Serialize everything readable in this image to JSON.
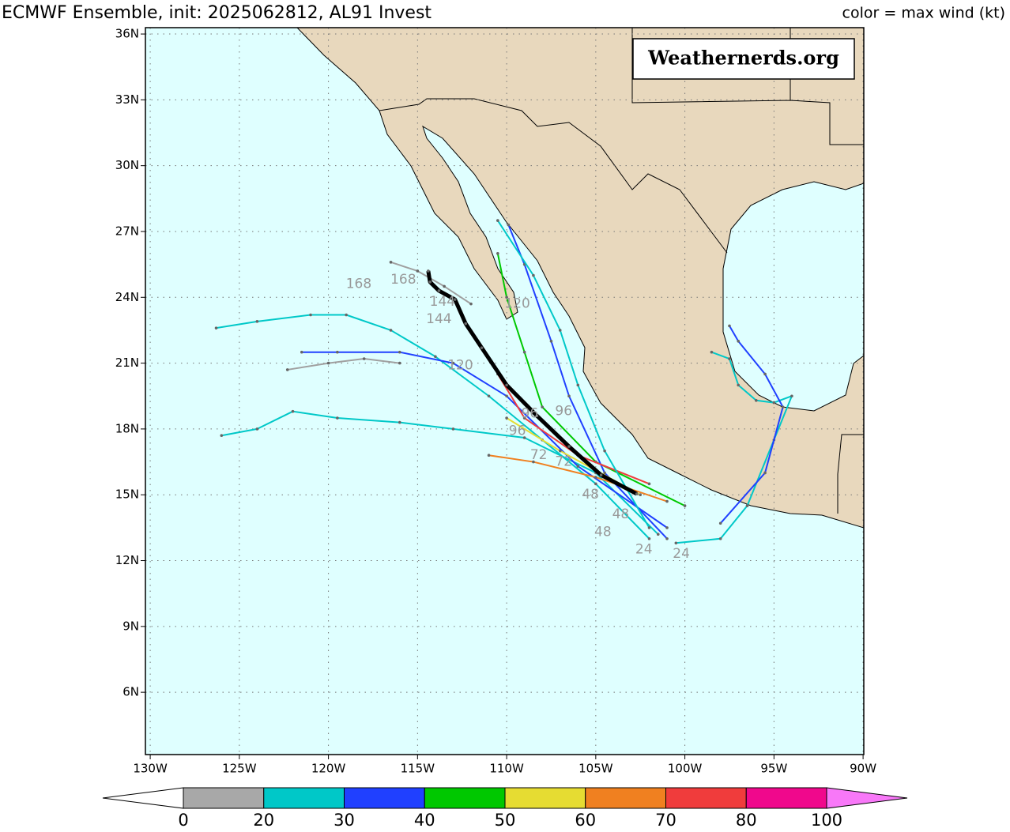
{
  "chart_data": {
    "type": "track-map",
    "title": "ECMWF Ensemble, init: 2025062812, AL91 Invest",
    "subtitle": "color = max wind (kt)",
    "watermark": "Weathernerds.org",
    "xlim": [
      -130.27,
      -89.96
    ],
    "ylim": [
      3.16,
      36.29
    ],
    "xticks": [
      {
        "value": -130,
        "label": "130W"
      },
      {
        "value": -125,
        "label": "125W"
      },
      {
        "value": -120,
        "label": "120W"
      },
      {
        "value": -115,
        "label": "115W"
      },
      {
        "value": -110,
        "label": "110W"
      },
      {
        "value": -105,
        "label": "105W"
      },
      {
        "value": -100,
        "label": "100W"
      },
      {
        "value": -95,
        "label": "95W"
      },
      {
        "value": -90,
        "label": "90W"
      }
    ],
    "yticks": [
      {
        "value": 6,
        "label": "6N"
      },
      {
        "value": 9,
        "label": "9N"
      },
      {
        "value": 12,
        "label": "12N"
      },
      {
        "value": 15,
        "label": "15N"
      },
      {
        "value": 18,
        "label": "18N"
      },
      {
        "value": 21,
        "label": "21N"
      },
      {
        "value": 24,
        "label": "24N"
      },
      {
        "value": 27,
        "label": "27N"
      },
      {
        "value": 30,
        "label": "30N"
      },
      {
        "value": 33,
        "label": "33N"
      },
      {
        "value": 36,
        "label": "36N"
      }
    ],
    "grid": true,
    "mean_track": {
      "color": "#000000",
      "lon": [
        -102.7,
        -104.7,
        -106.5,
        -108.3,
        -110.0,
        -111.4,
        -112.3,
        -112.9,
        -113.8,
        -114.3,
        -114.4
      ],
      "lat": [
        15.04,
        15.9,
        17.2,
        18.6,
        20.0,
        21.7,
        22.8,
        23.9,
        24.3,
        24.7,
        25.2
      ]
    },
    "series": [
      {
        "color": "#00c8c8",
        "lon": [
          -102,
          -105,
          -108,
          -111,
          -114,
          -116.5,
          -119,
          -121,
          -124,
          -126.3
        ],
        "lat": [
          13.0,
          15.5,
          17.5,
          19.5,
          21.3,
          22.5,
          23.2,
          23.2,
          22.9,
          22.6
        ]
      },
      {
        "color": "#00c8c8",
        "lon": [
          -101.5,
          -105,
          -109,
          -113,
          -116,
          -119.5,
          -122,
          -124,
          -126
        ],
        "lat": [
          13.2,
          16,
          17.6,
          18.0,
          18.3,
          18.5,
          18.8,
          18.0,
          17.7
        ]
      },
      {
        "color": "#2040ff",
        "lon": [
          -101,
          -106,
          -110,
          -113,
          -116,
          -119.5,
          -121.5
        ],
        "lat": [
          13.5,
          16.3,
          19.5,
          21.0,
          21.5,
          21.5,
          21.5
        ]
      },
      {
        "color": "#a0a0a0",
        "lon": [
          -116,
          -118,
          -120,
          -122.3
        ],
        "lat": [
          21,
          21.2,
          21.0,
          20.7
        ]
      },
      {
        "color": "#00c800",
        "lon": [
          -100,
          -105,
          -108,
          -109,
          -110,
          -110.5
        ],
        "lat": [
          14.5,
          16.5,
          19.0,
          21.5,
          24,
          26
        ]
      },
      {
        "color": "#2040ff",
        "lon": [
          -101,
          -104.5,
          -106.5,
          -107.5,
          -109,
          -109.9
        ],
        "lat": [
          13,
          16,
          19.5,
          22.0,
          25.5,
          27.3
        ]
      },
      {
        "color": "#f08020",
        "lon": [
          -101,
          -105,
          -108.5,
          -111
        ],
        "lat": [
          14.7,
          15.8,
          16.5,
          16.8
        ]
      },
      {
        "color": "#f03c3c",
        "lon": [
          -102,
          -106,
          -109,
          -110.5
        ],
        "lat": [
          15.5,
          16.8,
          18.5,
          20.5
        ]
      },
      {
        "color": "#e6dc32",
        "lon": [
          -102.5,
          -107,
          -110
        ],
        "lat": [
          15,
          17,
          18.5
        ]
      },
      {
        "color": "#00c8c8",
        "lon": [
          -100.5,
          -98,
          -96.5,
          -95,
          -94,
          -95,
          -96,
          -97,
          -97.5,
          -98.5
        ],
        "lat": [
          12.8,
          13,
          14.5,
          17.5,
          19.5,
          19.2,
          19.3,
          20,
          21.2,
          21.5
        ]
      },
      {
        "color": "#2040ff",
        "lon": [
          -98,
          -95.5,
          -94.5,
          -95.5,
          -97,
          -97.5
        ],
        "lat": [
          13.7,
          16,
          19,
          20.5,
          22,
          22.7
        ]
      },
      {
        "color": "#00c8c8",
        "lon": [
          -102,
          -104.5,
          -106,
          -107,
          -108.5,
          -110.5
        ],
        "lat": [
          13.5,
          17,
          20,
          22.5,
          25,
          27.5
        ]
      },
      {
        "color": "#a0a0a0",
        "lon": [
          -112,
          -113.5,
          -115,
          -116.5
        ],
        "lat": [
          23.7,
          24.5,
          25.2,
          25.6
        ]
      }
    ],
    "annotations": [
      {
        "text": "168",
        "lon": -118.3,
        "lat": 24.6
      },
      {
        "text": "168",
        "lon": -115.8,
        "lat": 24.8
      },
      {
        "text": "144",
        "lon": -113.6,
        "lat": 23.8
      },
      {
        "text": "144",
        "lon": -113.8,
        "lat": 23.0
      },
      {
        "text": "120",
        "lon": -112.6,
        "lat": 20.9
      },
      {
        "text": "120",
        "lon": -109.4,
        "lat": 23.7
      },
      {
        "text": "96",
        "lon": -108.7,
        "lat": 18.7
      },
      {
        "text": "96",
        "lon": -106.8,
        "lat": 18.8
      },
      {
        "text": "96",
        "lon": -109.4,
        "lat": 17.9
      },
      {
        "text": "72",
        "lon": -108.2,
        "lat": 16.8
      },
      {
        "text": "72",
        "lon": -106.8,
        "lat": 16.5
      },
      {
        "text": "48",
        "lon": -105.3,
        "lat": 15.0
      },
      {
        "text": "48",
        "lon": -103.6,
        "lat": 14.1
      },
      {
        "text": "48",
        "lon": -104.6,
        "lat": 13.3
      },
      {
        "text": "24",
        "lon": -102.3,
        "lat": 12.5
      },
      {
        "text": "24",
        "lon": -100.2,
        "lat": 12.3
      }
    ],
    "colorbar": {
      "bounds": [
        0,
        20,
        30,
        40,
        50,
        60,
        70,
        80,
        100
      ],
      "colors": [
        "#a8a8a8",
        "#00c8c8",
        "#2040ff",
        "#00c800",
        "#e6dc32",
        "#f08020",
        "#f03c3c",
        "#f0088c"
      ],
      "under": "#ffffff",
      "over": "#f878f8"
    }
  }
}
